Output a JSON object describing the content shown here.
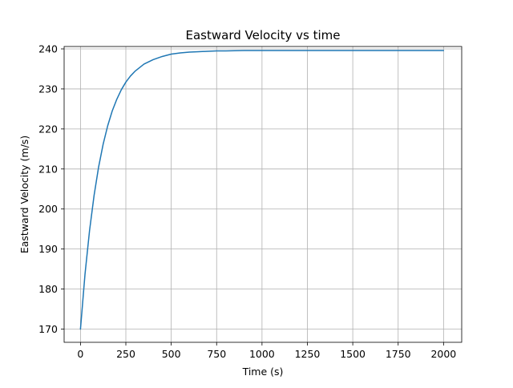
{
  "chart_data": {
    "type": "line",
    "title": "Eastward Velocity vs time",
    "xlabel": "Time (s)",
    "ylabel": "Eastward Velocity (m/s)",
    "xlim": [
      -90,
      2100
    ],
    "ylim": [
      166.7,
      240.6
    ],
    "xticks": [
      0,
      250,
      500,
      750,
      1000,
      1250,
      1500,
      1750,
      2000
    ],
    "yticks": [
      170,
      180,
      190,
      200,
      210,
      220,
      230,
      240
    ],
    "grid": true,
    "colors": {
      "line": "#1f77b4"
    },
    "series": [
      {
        "x": [
          0,
          25,
          50,
          75,
          100,
          125,
          150,
          175,
          200,
          225,
          250,
          275,
          300,
          350,
          400,
          450,
          500,
          550,
          600,
          650,
          700,
          750,
          800,
          900,
          1000,
          1100,
          1250,
          1500,
          1750,
          2000
        ],
        "values": [
          170.0,
          183.7,
          194.6,
          203.4,
          210.5,
          216.2,
          220.8,
          224.5,
          227.4,
          229.8,
          231.7,
          233.2,
          234.4,
          236.2,
          237.3,
          238.1,
          238.7,
          239.0,
          239.2,
          239.3,
          239.4,
          239.5,
          239.5,
          239.6,
          239.6,
          239.6,
          239.6,
          239.6,
          239.6,
          239.6
        ]
      }
    ]
  }
}
